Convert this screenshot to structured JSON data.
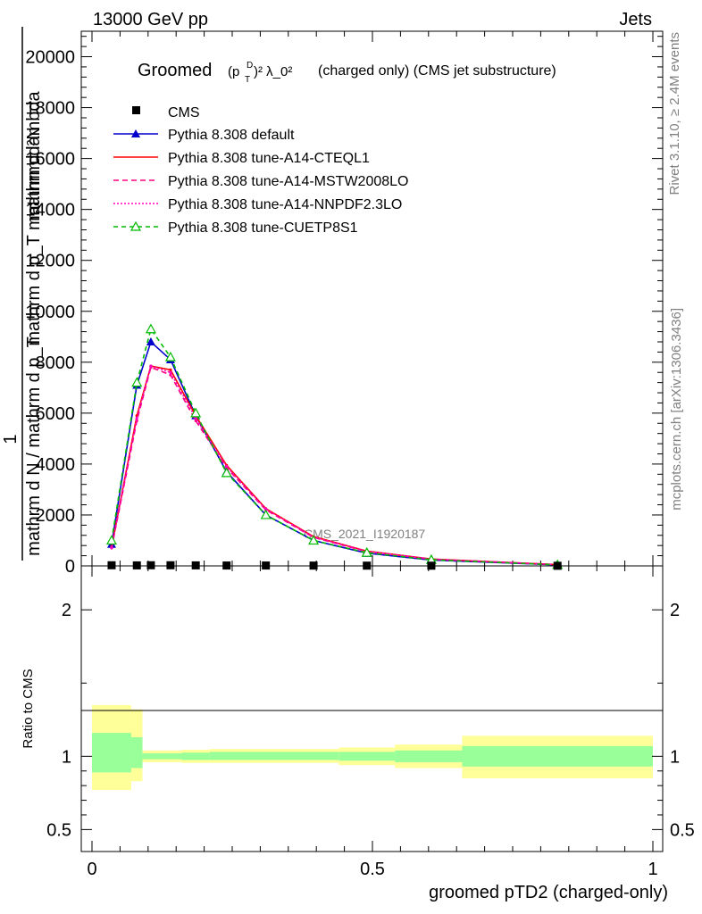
{
  "header": {
    "left": "13000 GeV pp",
    "right": "Jets"
  },
  "side_labels": {
    "rivet": "Rivet 3.1.10, ≥ 2.4M events",
    "mcplots": "mcplots.cern.ch [arXiv:1306.3436]"
  },
  "chart_data": {
    "type": "line",
    "title_prefix": "Groomed",
    "title_math": "(p",
    "title_sup_sub": "D",
    "title_sub": "T",
    "title_rest": ")² λ_0²",
    "title_suffix": "(charged only) (CMS jet substructure)",
    "ylabel_top": "mathrm d²N",
    "ylabel_mid": "mathrm d p_T mathrm d lambda",
    "ylabel_one": "1",
    "ylabel_bottom": "mathrm d N / mathrm d p_T",
    "ratio_ylabel": "Ratio to CMS",
    "xlabel": "groomed pTD2 (charged-only)",
    "watermark": "CMS_2021_I1920187",
    "xlim": [
      0,
      1
    ],
    "ylim": [
      0,
      21000
    ],
    "ratio_ylim": [
      0.35,
      2.3
    ],
    "xticks": [
      {
        "v": 0,
        "label": "0"
      },
      {
        "v": 0.5,
        "label": "0.5"
      },
      {
        "v": 1,
        "label": "1"
      }
    ],
    "yticks": [
      {
        "v": 0,
        "label": "0"
      },
      {
        "v": 2000,
        "label": "2000"
      },
      {
        "v": 4000,
        "label": "4000"
      },
      {
        "v": 6000,
        "label": "6000"
      },
      {
        "v": 8000,
        "label": "8000"
      },
      {
        "v": 10000,
        "label": "10000"
      },
      {
        "v": 12000,
        "label": "12000"
      },
      {
        "v": 14000,
        "label": "14000"
      },
      {
        "v": 16000,
        "label": "16000"
      },
      {
        "v": 18000,
        "label": "18000"
      },
      {
        "v": 20000,
        "label": "20000"
      }
    ],
    "ratio_yticks": [
      {
        "v": 0.5,
        "label": "0.5"
      },
      {
        "v": 1,
        "label": "1"
      },
      {
        "v": 2,
        "label": "2"
      }
    ],
    "x": [
      0.035,
      0.08,
      0.105,
      0.14,
      0.185,
      0.24,
      0.31,
      0.395,
      0.49,
      0.605,
      0.83
    ],
    "cms": [
      25,
      20,
      25,
      25,
      20,
      15,
      15,
      12,
      10,
      8,
      5
    ],
    "series": [
      {
        "name": "Pythia 8.308 default",
        "color": "#0000cc",
        "dash": "",
        "marker": "triangle-filled",
        "values": [
          850,
          7100,
          8800,
          8100,
          5900,
          3700,
          2000,
          1000,
          500,
          230,
          40
        ]
      },
      {
        "name": "Pythia 8.308 tune-A14-CTEQL1",
        "color": "#ff0000",
        "dash": "",
        "marker": "none",
        "values": [
          750,
          5900,
          7850,
          7700,
          5900,
          3950,
          2250,
          1150,
          580,
          270,
          50
        ]
      },
      {
        "name": "Pythia 8.308 tune-A14-MSTW2008LO",
        "color": "#ff0080",
        "dash": "6,4",
        "marker": "none",
        "values": [
          700,
          5700,
          7800,
          7500,
          5700,
          3850,
          2200,
          1120,
          560,
          260,
          48
        ]
      },
      {
        "name": "Pythia 8.308 tune-A14-NNPDF2.3LO",
        "color": "#ff00c0",
        "dash": "2,2",
        "marker": "none",
        "values": [
          720,
          5800,
          7850,
          7600,
          5800,
          3900,
          2230,
          1130,
          570,
          265,
          49
        ]
      },
      {
        "name": "Pythia 8.308 tune-CUETP8S1",
        "color": "#00bb00",
        "dash": "5,4",
        "marker": "triangle-open",
        "values": [
          1000,
          7200,
          9300,
          8200,
          6000,
          3650,
          2000,
          1000,
          520,
          240,
          42
        ]
      }
    ],
    "legend_cms": "CMS",
    "ratio_bands": [
      {
        "x0": 0.0,
        "x1": 0.07,
        "inner": [
          0.89,
          1.16
        ],
        "outer": [
          0.77,
          1.35
        ]
      },
      {
        "x0": 0.07,
        "x1": 0.09,
        "inner": [
          0.92,
          1.13
        ],
        "outer": [
          0.83,
          1.32
        ]
      },
      {
        "x0": 0.09,
        "x1": 0.16,
        "inner": [
          0.98,
          1.02
        ],
        "outer": [
          0.96,
          1.04
        ]
      },
      {
        "x0": 0.16,
        "x1": 0.21,
        "inner": [
          0.975,
          1.025
        ],
        "outer": [
          0.955,
          1.045
        ]
      },
      {
        "x0": 0.21,
        "x1": 0.44,
        "inner": [
          0.975,
          1.03
        ],
        "outer": [
          0.955,
          1.05
        ]
      },
      {
        "x0": 0.44,
        "x1": 0.54,
        "inner": [
          0.97,
          1.03
        ],
        "outer": [
          0.94,
          1.06
        ]
      },
      {
        "x0": 0.54,
        "x1": 0.66,
        "inner": [
          0.96,
          1.04
        ],
        "outer": [
          0.92,
          1.08
        ]
      },
      {
        "x0": 0.66,
        "x1": 1.0,
        "inner": [
          0.93,
          1.07
        ],
        "outer": [
          0.85,
          1.14
        ]
      }
    ]
  }
}
